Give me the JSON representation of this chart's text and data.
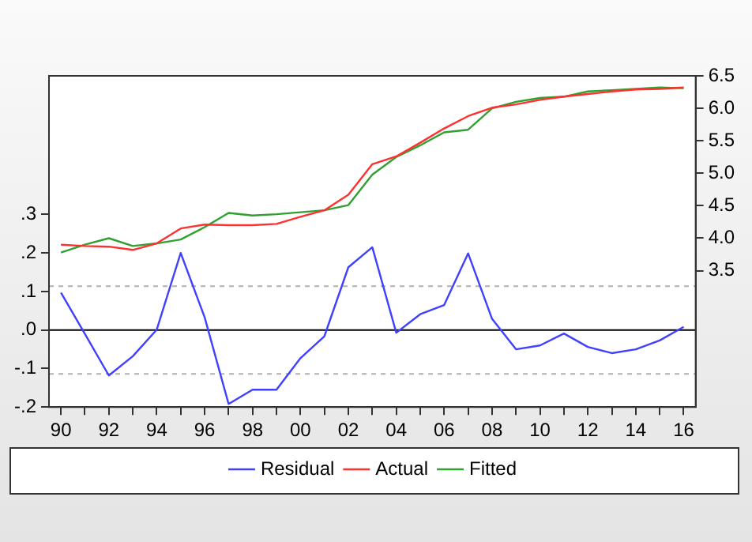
{
  "chart_data": {
    "type": "line",
    "categories": [
      "90",
      null,
      "92",
      null,
      "94",
      null,
      "96",
      null,
      "98",
      null,
      "00",
      null,
      "02",
      null,
      "04",
      null,
      "06",
      null,
      "08",
      null,
      "10",
      null,
      "12",
      null,
      "14",
      null,
      "16"
    ],
    "series": [
      {
        "name": "Residual",
        "color": "#4040ff",
        "values": [
          0.097,
          -0.01,
          -0.118,
          -0.068,
          0.001,
          0.2,
          0.033,
          -0.192,
          -0.155,
          -0.155,
          -0.073,
          -0.016,
          0.163,
          0.215,
          -0.007,
          0.041,
          0.065,
          0.199,
          0.029,
          -0.05,
          -0.04,
          -0.009,
          -0.044,
          -0.06,
          -0.05,
          -0.027,
          0.008
        ]
      },
      {
        "name": "Actual",
        "color": "#ff3030",
        "axis": "y2",
        "values": [
          3.9,
          3.88,
          3.87,
          3.82,
          3.92,
          4.15,
          4.21,
          4.2,
          4.2,
          4.22,
          4.33,
          4.43,
          4.67,
          5.14,
          5.26,
          5.47,
          5.69,
          5.88,
          6.01,
          6.06,
          6.13,
          6.18,
          6.22,
          6.26,
          6.29,
          6.3,
          6.32
        ]
      },
      {
        "name": "Fitted",
        "color": "#30a030",
        "axis": "y2",
        "values": [
          3.78,
          3.9,
          4.0,
          3.88,
          3.92,
          3.98,
          4.17,
          4.39,
          4.35,
          4.37,
          4.4,
          4.43,
          4.51,
          4.98,
          5.25,
          5.43,
          5.63,
          5.67,
          6.0,
          6.1,
          6.16,
          6.18,
          6.26,
          6.28,
          6.3,
          6.32,
          6.31
        ]
      }
    ],
    "ylim": [
      -0.2,
      0.66
    ],
    "yticks": [
      {
        "value": -0.2,
        "label": "-.2"
      },
      {
        "value": -0.1,
        "label": "-.1"
      },
      {
        "value": 0,
        "label": ".0"
      },
      {
        "value": 0.1,
        "label": ".1"
      },
      {
        "value": 0.2,
        "label": ".2"
      },
      {
        "value": 0.3,
        "label": ".3"
      }
    ],
    "y2lim": [
      1.4,
      6.5
    ],
    "y2ticks": [
      3.5,
      {
        "value": 4,
        "label": "4.0"
      },
      4.5,
      {
        "value": 5,
        "label": "5.0"
      },
      5.5,
      {
        "value": 6,
        "label": "6.0"
      },
      6.5
    ],
    "ref_lines": [
      {
        "axis": "y",
        "value": 0,
        "color": "#000000",
        "line_style": "solid"
      },
      {
        "axis": "y",
        "value": 0.114,
        "color": "#b0b0b0",
        "line_style": "dashed"
      },
      {
        "axis": "y",
        "value": -0.114,
        "color": "#b0b0b0",
        "line_style": "dashed"
      }
    ],
    "grid": false,
    "legend": "bottom",
    "marker": "none",
    "line_style": "solid"
  }
}
